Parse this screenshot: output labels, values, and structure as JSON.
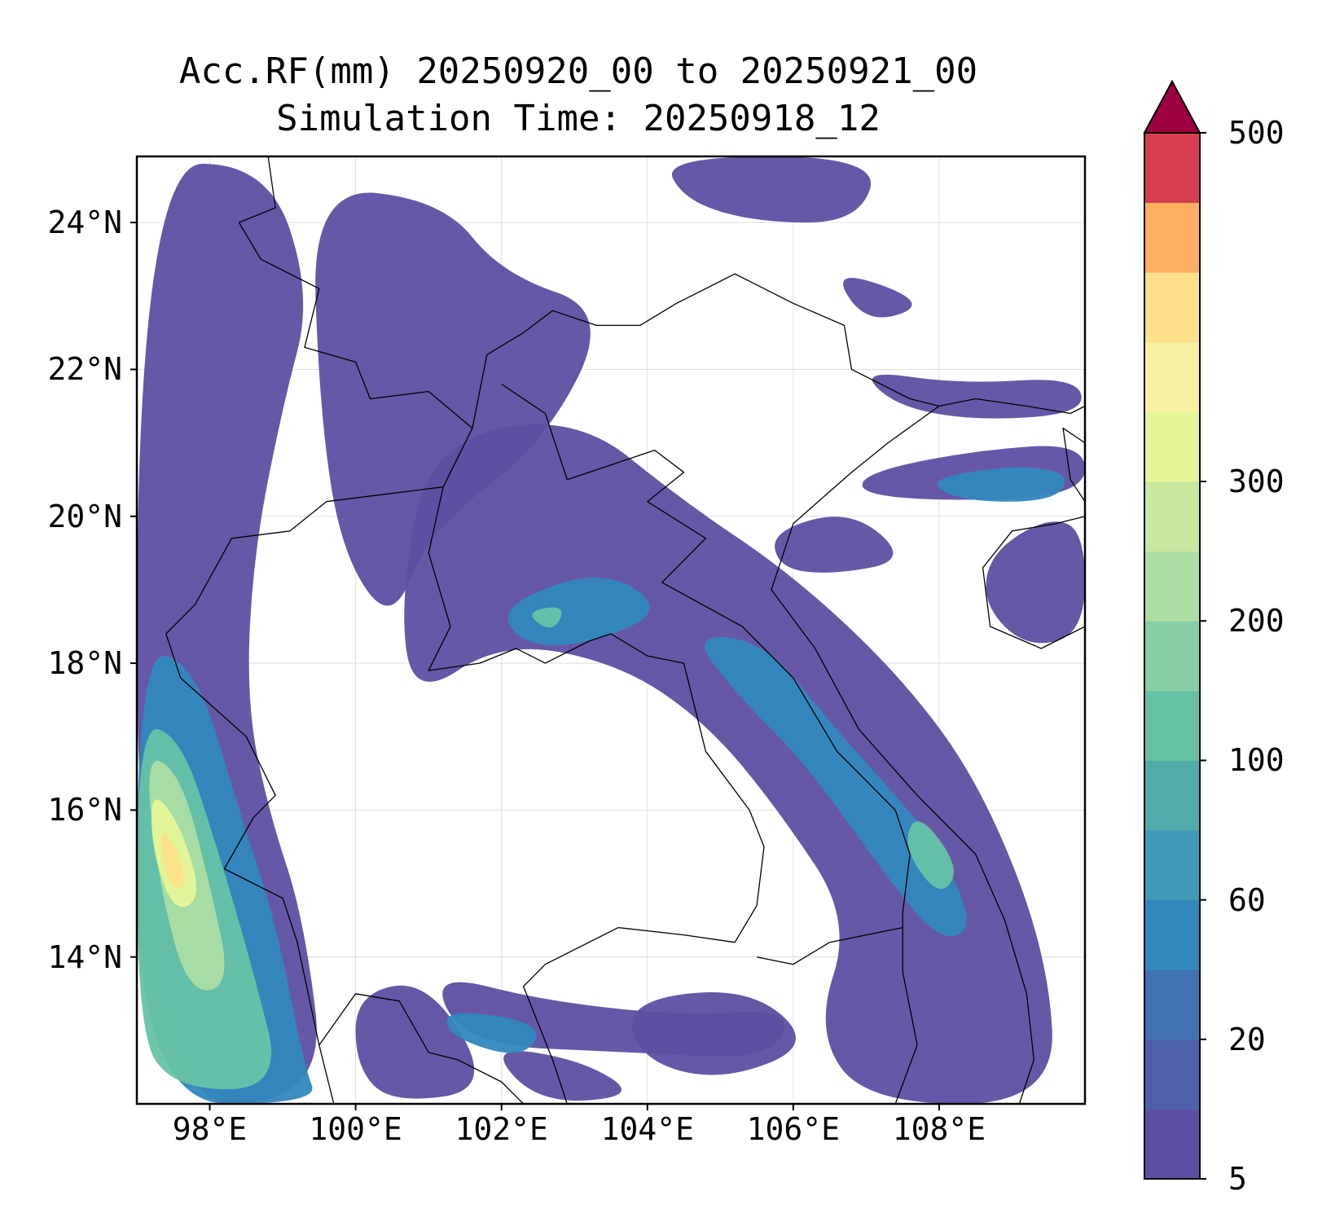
{
  "title": {
    "line1": "Acc.RF(mm) 20250920_00 to 20250921_00",
    "line2": "Simulation Time: 20250918_12"
  },
  "map": {
    "extent": {
      "lon_min": 97.0,
      "lon_max": 110.0,
      "lat_min": 12.0,
      "lat_max": 24.9
    },
    "lat_ticks": [
      {
        "value": 24,
        "label": "24°N"
      },
      {
        "value": 22,
        "label": "22°N"
      },
      {
        "value": 20,
        "label": "20°N"
      },
      {
        "value": 18,
        "label": "18°N"
      },
      {
        "value": 16,
        "label": "16°N"
      },
      {
        "value": 14,
        "label": "14°N"
      }
    ],
    "lon_ticks": [
      {
        "value": 98,
        "label": "98°E"
      },
      {
        "value": 100,
        "label": "100°E"
      },
      {
        "value": 102,
        "label": "102°E"
      },
      {
        "value": 104,
        "label": "104°E"
      },
      {
        "value": 106,
        "label": "106°E"
      },
      {
        "value": 108,
        "label": "108°E"
      }
    ],
    "gridlines": true,
    "rain_regions": [
      {
        "level": 0,
        "points": [
          [
            97.0,
            24.8
          ],
          [
            98.8,
            24.8
          ],
          [
            99.4,
            23.0
          ],
          [
            99.0,
            21.5
          ],
          [
            98.6,
            19.5
          ],
          [
            98.5,
            17.5
          ],
          [
            98.8,
            16.0
          ],
          [
            99.3,
            14.5
          ],
          [
            99.6,
            12.0
          ],
          [
            97.0,
            12.0
          ]
        ]
      },
      {
        "level": 0,
        "points": [
          [
            99.4,
            24.5
          ],
          [
            101.2,
            24.3
          ],
          [
            102.0,
            23.3
          ],
          [
            103.5,
            22.8
          ],
          [
            102.6,
            21.0
          ],
          [
            101.0,
            19.8
          ],
          [
            100.5,
            18.5
          ],
          [
            99.8,
            19.5
          ],
          [
            99.5,
            21.5
          ]
        ]
      },
      {
        "level": 0,
        "points": [
          [
            101.0,
            21.0
          ],
          [
            103.0,
            21.4
          ],
          [
            104.5,
            20.2
          ],
          [
            106.0,
            19.2
          ],
          [
            107.5,
            17.8
          ],
          [
            108.6,
            16.3
          ],
          [
            109.5,
            14.0
          ],
          [
            109.6,
            12.0
          ],
          [
            107.0,
            12.0
          ],
          [
            106.3,
            13.0
          ],
          [
            106.8,
            14.5
          ],
          [
            105.8,
            16.0
          ],
          [
            104.8,
            17.2
          ],
          [
            103.6,
            18.0
          ],
          [
            102.0,
            18.3
          ],
          [
            100.8,
            17.5
          ],
          [
            100.6,
            18.8
          ]
        ]
      },
      {
        "level": 0,
        "points": [
          [
            104.2,
            24.9
          ],
          [
            107.2,
            24.9
          ],
          [
            106.9,
            24.0
          ],
          [
            105.5,
            24.0
          ],
          [
            104.5,
            24.3
          ]
        ]
      },
      {
        "level": 0,
        "points": [
          [
            106.5,
            23.4
          ],
          [
            107.9,
            22.9
          ],
          [
            107.0,
            22.6
          ]
        ]
      },
      {
        "level": 0,
        "points": [
          [
            106.9,
            22.0
          ],
          [
            108.3,
            21.8
          ],
          [
            109.9,
            21.9
          ],
          [
            110.0,
            21.4
          ],
          [
            108.5,
            21.3
          ],
          [
            107.4,
            21.5
          ]
        ]
      },
      {
        "level": 0,
        "points": [
          [
            107.0,
            20.6
          ],
          [
            108.5,
            20.9
          ],
          [
            110.0,
            21.0
          ],
          [
            110.0,
            20.3
          ],
          [
            108.2,
            20.2
          ],
          [
            106.9,
            20.3
          ]
        ]
      },
      {
        "level": 0,
        "points": [
          [
            105.7,
            19.8
          ],
          [
            106.8,
            20.1
          ],
          [
            107.6,
            19.4
          ],
          [
            106.5,
            19.2
          ],
          [
            105.8,
            19.3
          ]
        ]
      },
      {
        "level": 0,
        "points": [
          [
            108.7,
            19.5
          ],
          [
            109.5,
            20.0
          ],
          [
            110.0,
            19.8
          ],
          [
            110.0,
            18.4
          ],
          [
            109.2,
            18.2
          ],
          [
            108.6,
            18.8
          ]
        ]
      },
      {
        "level": 0,
        "points": [
          [
            101.0,
            13.8
          ],
          [
            102.6,
            13.4
          ],
          [
            104.5,
            13.2
          ],
          [
            106.0,
            13.3
          ],
          [
            105.7,
            12.6
          ],
          [
            103.8,
            12.7
          ],
          [
            101.5,
            12.8
          ]
        ]
      },
      {
        "level": 0,
        "points": [
          [
            100.0,
            13.5
          ],
          [
            101.0,
            13.7
          ],
          [
            101.9,
            12.2
          ],
          [
            100.5,
            12.0
          ],
          [
            100.0,
            12.5
          ]
        ]
      },
      {
        "level": 0,
        "points": [
          [
            101.8,
            12.8
          ],
          [
            103.1,
            12.6
          ],
          [
            103.9,
            12.1
          ],
          [
            102.5,
            12.0
          ]
        ]
      },
      {
        "level": 0,
        "points": [
          [
            103.7,
            13.4
          ],
          [
            105.4,
            13.6
          ],
          [
            106.3,
            12.8
          ],
          [
            105.0,
            12.3
          ],
          [
            103.9,
            12.6
          ]
        ]
      },
      {
        "level": 1,
        "points": [
          [
            97.0,
            18.2
          ],
          [
            97.8,
            18.0
          ],
          [
            98.4,
            16.0
          ],
          [
            98.9,
            14.5
          ],
          [
            99.3,
            12.5
          ],
          [
            99.5,
            12.0
          ],
          [
            97.0,
            12.0
          ]
        ]
      },
      {
        "level": 1,
        "points": [
          [
            102.0,
            18.8
          ],
          [
            103.4,
            19.3
          ],
          [
            104.3,
            18.7
          ],
          [
            103.0,
            18.2
          ],
          [
            102.2,
            18.3
          ]
        ]
      },
      {
        "level": 1,
        "points": [
          [
            104.6,
            18.4
          ],
          [
            105.6,
            18.3
          ],
          [
            106.5,
            17.2
          ],
          [
            107.4,
            16.2
          ],
          [
            108.0,
            15.5
          ],
          [
            108.5,
            14.4
          ],
          [
            108.0,
            14.2
          ],
          [
            107.2,
            15.2
          ],
          [
            106.2,
            16.6
          ],
          [
            105.2,
            17.6
          ]
        ]
      },
      {
        "level": 1,
        "points": [
          [
            101.2,
            13.3
          ],
          [
            102.6,
            13.1
          ],
          [
            102.3,
            12.6
          ],
          [
            101.3,
            12.9
          ]
        ]
      },
      {
        "level": 1,
        "points": [
          [
            107.8,
            20.5
          ],
          [
            109.0,
            20.7
          ],
          [
            109.8,
            20.6
          ],
          [
            109.6,
            20.2
          ],
          [
            108.3,
            20.2
          ]
        ]
      },
      {
        "level": 2,
        "points": [
          [
            97.0,
            17.2
          ],
          [
            97.6,
            17.0
          ],
          [
            98.1,
            15.5
          ],
          [
            98.6,
            13.8
          ],
          [
            99.0,
            12.2
          ],
          [
            97.5,
            12.2
          ],
          [
            97.0,
            13.0
          ]
        ]
      },
      {
        "level": 2,
        "points": [
          [
            107.7,
            16.0
          ],
          [
            108.3,
            15.2
          ],
          [
            108.0,
            14.8
          ],
          [
            107.5,
            15.5
          ]
        ]
      },
      {
        "level": 2,
        "points": [
          [
            102.3,
            18.7
          ],
          [
            102.9,
            18.8
          ],
          [
            102.7,
            18.4
          ]
        ]
      },
      {
        "level": 3,
        "points": [
          [
            97.1,
            16.8
          ],
          [
            97.6,
            16.5
          ],
          [
            98.0,
            15.0
          ],
          [
            98.3,
            13.6
          ],
          [
            97.7,
            13.5
          ],
          [
            97.3,
            15.0
          ]
        ]
      },
      {
        "level": 4,
        "points": [
          [
            97.2,
            16.3
          ],
          [
            97.6,
            15.8
          ],
          [
            97.9,
            14.8
          ],
          [
            97.5,
            14.6
          ],
          [
            97.2,
            15.5
          ]
        ]
      },
      {
        "level": 5,
        "points": [
          [
            97.3,
            15.8
          ],
          [
            97.55,
            15.5
          ],
          [
            97.7,
            14.9
          ],
          [
            97.4,
            15.0
          ]
        ]
      }
    ],
    "borders": [
      [
        [
          98.8,
          24.9
        ],
        [
          98.9,
          24.2
        ],
        [
          98.4,
          24.0
        ],
        [
          98.7,
          23.5
        ],
        [
          99.5,
          23.1
        ],
        [
          99.3,
          22.3
        ],
        [
          100.0,
          22.1
        ],
        [
          100.2,
          21.6
        ],
        [
          101.0,
          21.7
        ],
        [
          101.6,
          21.2
        ],
        [
          101.8,
          22.2
        ]
      ],
      [
        [
          101.8,
          22.2
        ],
        [
          102.3,
          22.5
        ],
        [
          102.7,
          22.8
        ],
        [
          103.3,
          22.6
        ],
        [
          103.9,
          22.6
        ],
        [
          104.4,
          22.9
        ],
        [
          105.2,
          23.3
        ],
        [
          106.0,
          22.9
        ],
        [
          106.7,
          22.6
        ],
        [
          106.8,
          22.0
        ],
        [
          107.6,
          21.6
        ],
        [
          108.0,
          21.5
        ]
      ],
      [
        [
          101.6,
          21.2
        ],
        [
          101.2,
          20.4
        ],
        [
          100.4,
          20.3
        ],
        [
          99.6,
          20.2
        ],
        [
          99.1,
          19.8
        ],
        [
          98.3,
          19.7
        ],
        [
          97.8,
          18.8
        ],
        [
          97.4,
          18.4
        ],
        [
          97.6,
          17.8
        ],
        [
          98.5,
          17.0
        ],
        [
          98.9,
          16.2
        ],
        [
          98.6,
          15.9
        ],
        [
          98.2,
          15.2
        ],
        [
          99.0,
          14.8
        ],
        [
          99.2,
          14.2
        ],
        [
          99.5,
          12.8
        ],
        [
          99.7,
          12.0
        ]
      ],
      [
        [
          101.2,
          20.4
        ],
        [
          101.0,
          19.5
        ],
        [
          101.3,
          18.5
        ],
        [
          101.0,
          17.9
        ],
        [
          101.7,
          18.0
        ],
        [
          102.2,
          18.2
        ],
        [
          102.6,
          18.0
        ],
        [
          103.2,
          18.3
        ],
        [
          103.5,
          18.4
        ],
        [
          104.0,
          18.1
        ],
        [
          104.5,
          18.0
        ],
        [
          104.8,
          16.8
        ],
        [
          105.4,
          16.0
        ],
        [
          105.6,
          15.5
        ],
        [
          105.5,
          14.7
        ],
        [
          105.2,
          14.2
        ]
      ],
      [
        [
          102.0,
          21.8
        ],
        [
          102.6,
          21.4
        ],
        [
          102.9,
          20.5
        ],
        [
          103.5,
          20.7
        ],
        [
          104.1,
          20.9
        ],
        [
          104.5,
          20.6
        ],
        [
          104.0,
          20.2
        ],
        [
          104.8,
          19.7
        ],
        [
          104.2,
          19.1
        ],
        [
          105.3,
          18.5
        ],
        [
          106.0,
          17.8
        ],
        [
          106.6,
          16.8
        ],
        [
          107.4,
          16.0
        ],
        [
          107.6,
          15.4
        ],
        [
          107.5,
          14.6
        ],
        [
          107.5,
          13.8
        ]
      ],
      [
        [
          105.2,
          14.2
        ],
        [
          104.5,
          14.3
        ],
        [
          103.6,
          14.4
        ],
        [
          102.6,
          13.9
        ],
        [
          102.3,
          13.6
        ],
        [
          102.7,
          12.6
        ],
        [
          102.9,
          12.0
        ]
      ],
      [
        [
          105.5,
          14.0
        ],
        [
          106.0,
          13.9
        ],
        [
          106.5,
          14.2
        ],
        [
          107.5,
          14.4
        ]
      ],
      [
        [
          107.5,
          13.8
        ],
        [
          107.7,
          12.8
        ],
        [
          107.4,
          12.0
        ]
      ],
      [
        [
          108.0,
          21.5
        ],
        [
          107.3,
          21.0
        ],
        [
          106.8,
          20.6
        ],
        [
          106.0,
          19.9
        ],
        [
          105.7,
          19.0
        ],
        [
          106.3,
          18.2
        ],
        [
          106.9,
          17.1
        ],
        [
          107.7,
          16.2
        ],
        [
          108.5,
          15.4
        ],
        [
          108.9,
          14.5
        ],
        [
          109.2,
          13.5
        ],
        [
          109.3,
          12.6
        ],
        [
          109.1,
          12.0
        ]
      ],
      [
        [
          99.5,
          12.8
        ],
        [
          100.0,
          13.5
        ],
        [
          100.6,
          13.4
        ],
        [
          101.0,
          12.7
        ],
        [
          101.4,
          12.6
        ],
        [
          102.0,
          12.3
        ],
        [
          102.3,
          12.0
        ]
      ],
      [
        [
          108.0,
          21.5
        ],
        [
          108.5,
          21.6
        ],
        [
          109.2,
          21.5
        ],
        [
          109.8,
          21.4
        ],
        [
          110.0,
          21.5
        ]
      ],
      [
        [
          110.0,
          21.0
        ],
        [
          109.7,
          21.2
        ],
        [
          109.8,
          20.5
        ],
        [
          110.0,
          20.2
        ]
      ],
      [
        [
          110.0,
          20.0
        ],
        [
          109.6,
          19.9
        ],
        [
          109.0,
          19.8
        ],
        [
          108.6,
          19.3
        ],
        [
          108.7,
          18.5
        ],
        [
          109.4,
          18.2
        ],
        [
          110.0,
          18.5
        ]
      ]
    ]
  },
  "colorbar": {
    "colors": [
      "#5e4fa2",
      "#3288bd",
      "#66c2a5",
      "#abdda4",
      "#e6f598",
      "#fee08b",
      "#fdae61",
      "#f46d43",
      "#d53e4f",
      "#9e0142"
    ],
    "bands": [
      "#5e4fa2",
      "#4e60a8",
      "#4071b0",
      "#3288bd",
      "#4099b5",
      "#52abab",
      "#66c2a5",
      "#86cfa5",
      "#abdda4",
      "#c7e89e",
      "#e6f598",
      "#f8f0a0",
      "#fee08b",
      "#fdae61",
      "#d53e4f"
    ],
    "extend_color": "#9e0142",
    "tick_labels": [
      "5",
      "20",
      "60",
      "100",
      "200",
      "300",
      "500"
    ]
  }
}
